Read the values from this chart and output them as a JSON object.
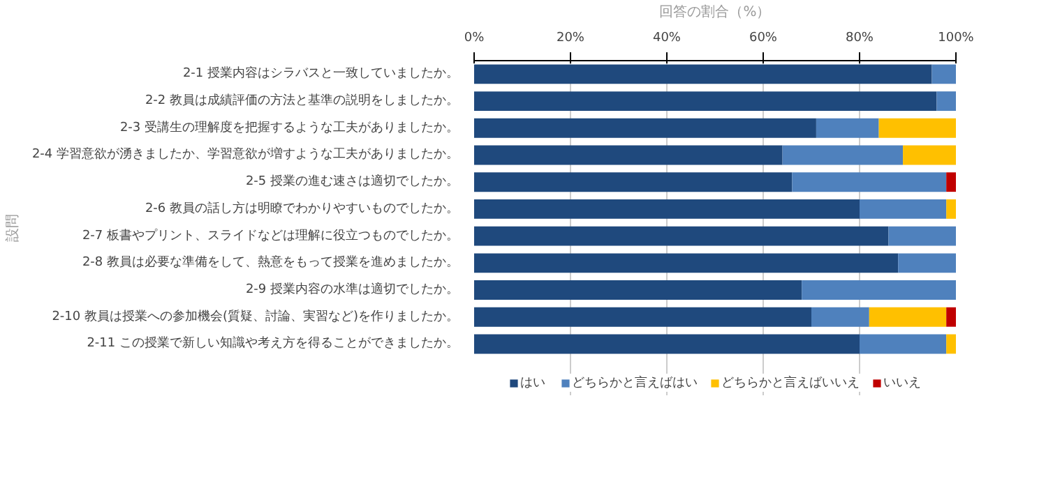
{
  "chart_data": {
    "type": "bar",
    "orientation": "horizontal",
    "stacked": true,
    "xlabel": "回答の割合（%）",
    "ylabel": "設問",
    "categories": [
      "2-1 授業内容はシラバスと一致していましたか。",
      "2-2 教員は成績評価の方法と基準の説明をしましたか。",
      "2-3 受講生の理解度を把握するような工夫がありましたか。",
      "2-4 学習意欲が湧きましたか、学習意欲が増すような工夫がありましたか。",
      "2-5 授業の進む速さは適切でしたか。",
      "2-6 教員の話し方は明瞭でわかりやすいものでしたか。",
      "2-7 板書やプリント、スライドなどは理解に役立つものでしたか。",
      "2-8 教員は必要な準備をして、熱意をもって授業を進めましたか。",
      "2-9 授業内容の水準は適切でしたか。",
      "2-10 教員は授業への参加機会(質疑、討論、実習など)を作りましたか。",
      "2-11 この授業で新しい知識や考え方を得ることができましたか。"
    ],
    "series": [
      {
        "name": "はい",
        "color": "#1f497d",
        "values": [
          95,
          96,
          71,
          64,
          66,
          80,
          86,
          88,
          68,
          70,
          80
        ]
      },
      {
        "name": "どちらかと言えばはい",
        "color": "#4f81bd",
        "values": [
          5,
          4,
          13,
          25,
          32,
          18,
          14,
          12,
          32,
          12,
          18
        ]
      },
      {
        "name": "どちらかと言えばいいえ",
        "color": "#ffc000",
        "values": [
          0,
          0,
          16,
          11,
          0,
          2,
          0,
          0,
          0,
          16,
          2
        ]
      },
      {
        "name": "いいえ",
        "color": "#c00000",
        "values": [
          0,
          0,
          0,
          0,
          2,
          0,
          0,
          0,
          0,
          2,
          0
        ]
      }
    ],
    "xlim": [
      0,
      100
    ],
    "xticks": [
      {
        "value": 0,
        "label": "0%"
      },
      {
        "value": 20,
        "label": "20%"
      },
      {
        "value": 40,
        "label": "40%"
      },
      {
        "value": 60,
        "label": "60%"
      },
      {
        "value": 80,
        "label": "80%"
      },
      {
        "value": 100,
        "label": "100%"
      }
    ],
    "grid": "x",
    "legend": "bottom"
  }
}
